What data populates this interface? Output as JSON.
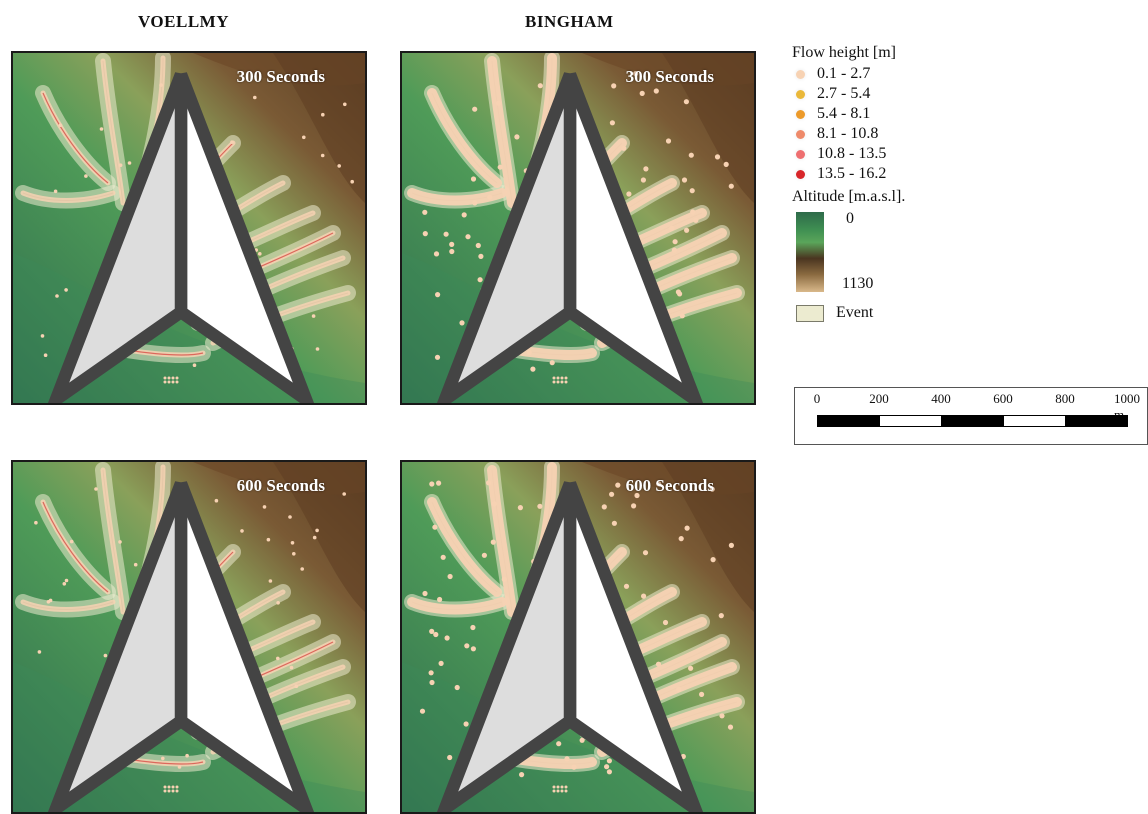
{
  "columns": {
    "left": "VOELLMY",
    "right": "BINGHAM"
  },
  "panels": [
    {
      "model": "VOELLMY",
      "time": "300 Seconds"
    },
    {
      "model": "BINGHAM",
      "time": "300 Seconds"
    },
    {
      "model": "VOELLMY",
      "time": "600 Seconds"
    },
    {
      "model": "BINGHAM",
      "time": "600 Seconds"
    }
  ],
  "legend": {
    "flow_height_title": "Flow height [m]",
    "flow_height_classes": [
      {
        "label": "0.1 - 2.7",
        "color": "#f7d2b3"
      },
      {
        "label": "2.7 - 5.4",
        "color": "#eab83a"
      },
      {
        "label": "5.4 - 8.1",
        "color": "#ec9a2a"
      },
      {
        "label": "8.1 - 10.8",
        "color": "#ee8a6a"
      },
      {
        "label": "10.8 - 13.5",
        "color": "#ee6f70"
      },
      {
        "label": "13.5 - 16.2",
        "color": "#d8262a"
      }
    ],
    "altitude_title": "Altitude [m.a.s.l].",
    "altitude_max": "0",
    "altitude_min": "1130",
    "event_label": "Event"
  },
  "scale": {
    "labels": [
      "0",
      "200",
      "400",
      "600",
      "800",
      "1000 m"
    ]
  },
  "colors": {
    "terrain_low": "#2f6e4e",
    "terrain_mid": "#4f9b58",
    "terrain_high": "#7a5a35",
    "event_fill": "#ecebd0",
    "flow_fill": "#f7d2b3"
  }
}
